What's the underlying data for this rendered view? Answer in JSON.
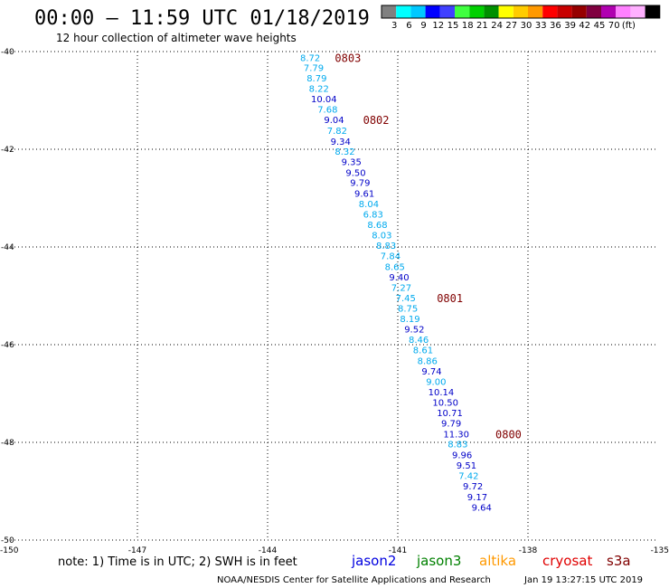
{
  "header": {
    "title": "00:00 – 11:59 UTC 01/18/2019",
    "subtitle": "12 hour collection of altimeter wave heights"
  },
  "legend_scale": {
    "colors": [
      "#808080",
      "#00ffff",
      "#00c8ff",
      "#0000ff",
      "#4040ff",
      "#40ff40",
      "#00d000",
      "#009000",
      "#ffff00",
      "#ffcc00",
      "#ff9900",
      "#ff0000",
      "#c80000",
      "#960000",
      "#800040",
      "#b000b0",
      "#ff80ff",
      "#ffb0ff",
      "#000000"
    ],
    "labels": [
      "3",
      "6",
      "9",
      "12",
      "15",
      "18",
      "21",
      "24",
      "27",
      "30",
      "33",
      "36",
      "39",
      "42",
      "45",
      "70",
      "(ft)"
    ]
  },
  "note": "note: 1) Time is in UTC; 2) SWH is in feet",
  "satellites": [
    {
      "name": "jason2",
      "color": "#0000e0"
    },
    {
      "name": "jason3",
      "color": "#008000"
    },
    {
      "name": "altika",
      "color": "#ff9900"
    },
    {
      "name": "cryosat",
      "color": "#e00000"
    },
    {
      "name": "s3a",
      "color": "#800000"
    }
  ],
  "footer_left": "NOAA/NESDIS Center for Satellite Applications and Research",
  "footer_right": "Jan 19 13:27:15 UTC 2019",
  "chart_data": {
    "type": "scatter",
    "xlim": [
      -150,
      -135
    ],
    "ylim": [
      -50,
      -40
    ],
    "x_ticks": [
      -150,
      -147,
      -144,
      -141,
      -138,
      -135
    ],
    "x_tick_labels": [
      "-150",
      "-147",
      "-144",
      "-141",
      "-138",
      "-135"
    ],
    "y_ticks": [
      -40,
      -42,
      -44,
      -46,
      -48,
      -50
    ],
    "y_tick_labels": [
      "-40",
      "-42",
      "-44",
      "-46",
      "-48",
      "-50"
    ],
    "grid": true,
    "points": [
      {
        "lon": -143.25,
        "lat": -40.12,
        "label": "8.72",
        "color": "#00aaee"
      },
      {
        "lon": -143.17,
        "lat": -40.32,
        "label": "7.79",
        "color": "#00aaee"
      },
      {
        "lon": -143.1,
        "lat": -40.54,
        "label": "8.79",
        "color": "#00aaee"
      },
      {
        "lon": -143.05,
        "lat": -40.75,
        "label": "8.22",
        "color": "#00aaee"
      },
      {
        "lon": -143.0,
        "lat": -40.96,
        "label": "10.04",
        "color": "#0000c8"
      },
      {
        "lon": -142.85,
        "lat": -41.18,
        "label": "7.68",
        "color": "#00aaee"
      },
      {
        "lon": -142.7,
        "lat": -41.39,
        "label": "9.04",
        "color": "#0000c8"
      },
      {
        "lon": -142.63,
        "lat": -41.61,
        "label": "7.82",
        "color": "#00aaee"
      },
      {
        "lon": -142.55,
        "lat": -41.83,
        "label": "9.34",
        "color": "#0000c8"
      },
      {
        "lon": -142.45,
        "lat": -42.04,
        "label": "8.32",
        "color": "#00aaee"
      },
      {
        "lon": -142.3,
        "lat": -42.25,
        "label": "9.35",
        "color": "#0000c8"
      },
      {
        "lon": -142.2,
        "lat": -42.47,
        "label": "9.50",
        "color": "#0000c8"
      },
      {
        "lon": -142.1,
        "lat": -42.68,
        "label": "9.79",
        "color": "#0000c8"
      },
      {
        "lon": -142.0,
        "lat": -42.9,
        "label": "9.61",
        "color": "#0000c8"
      },
      {
        "lon": -141.9,
        "lat": -43.11,
        "label": "8.04",
        "color": "#00aaee"
      },
      {
        "lon": -141.8,
        "lat": -43.32,
        "label": "6.83",
        "color": "#00aaee"
      },
      {
        "lon": -141.7,
        "lat": -43.54,
        "label": "8.68",
        "color": "#00aaee"
      },
      {
        "lon": -141.6,
        "lat": -43.75,
        "label": "8.03",
        "color": "#00aaee"
      },
      {
        "lon": -141.5,
        "lat": -43.96,
        "label": "8.83",
        "color": "#00aaee"
      },
      {
        "lon": -141.4,
        "lat": -44.18,
        "label": "7.84",
        "color": "#00aaee"
      },
      {
        "lon": -141.3,
        "lat": -44.4,
        "label": "8.65",
        "color": "#00aaee"
      },
      {
        "lon": -141.2,
        "lat": -44.61,
        "label": "9.40",
        "color": "#0000c8"
      },
      {
        "lon": -141.15,
        "lat": -44.82,
        "label": "7.27",
        "color": "#00aaee"
      },
      {
        "lon": -141.05,
        "lat": -45.04,
        "label": "7.45",
        "color": "#00aaee"
      },
      {
        "lon": -141.0,
        "lat": -45.25,
        "label": "8.75",
        "color": "#00aaee"
      },
      {
        "lon": -140.95,
        "lat": -45.46,
        "label": "8.19",
        "color": "#00aaee"
      },
      {
        "lon": -140.85,
        "lat": -45.68,
        "label": "9.52",
        "color": "#0000c8"
      },
      {
        "lon": -140.75,
        "lat": -45.89,
        "label": "8.46",
        "color": "#00aaee"
      },
      {
        "lon": -140.65,
        "lat": -46.1,
        "label": "8.61",
        "color": "#00aaee"
      },
      {
        "lon": -140.55,
        "lat": -46.32,
        "label": "8.86",
        "color": "#00aaee"
      },
      {
        "lon": -140.45,
        "lat": -46.54,
        "label": "9.74",
        "color": "#0000c8"
      },
      {
        "lon": -140.35,
        "lat": -46.75,
        "label": "9.00",
        "color": "#00aaee"
      },
      {
        "lon": -140.3,
        "lat": -46.96,
        "label": "10.14",
        "color": "#0000c8"
      },
      {
        "lon": -140.2,
        "lat": -47.18,
        "label": "10.50",
        "color": "#0000c8"
      },
      {
        "lon": -140.1,
        "lat": -47.39,
        "label": "10.71",
        "color": "#0000c8"
      },
      {
        "lon": -140.0,
        "lat": -47.6,
        "label": "9.79",
        "color": "#0000c8"
      },
      {
        "lon": -139.95,
        "lat": -47.82,
        "label": "11.30",
        "color": "#0000c8"
      },
      {
        "lon": -139.85,
        "lat": -48.03,
        "label": "8.83",
        "color": "#00aaee"
      },
      {
        "lon": -139.75,
        "lat": -48.25,
        "label": "9.96",
        "color": "#0000c8"
      },
      {
        "lon": -139.65,
        "lat": -48.46,
        "label": "9.51",
        "color": "#0000c8"
      },
      {
        "lon": -139.6,
        "lat": -48.68,
        "label": "7.42",
        "color": "#00aaee"
      },
      {
        "lon": -139.5,
        "lat": -48.89,
        "label": "9.72",
        "color": "#0000c8"
      },
      {
        "lon": -139.4,
        "lat": -49.11,
        "label": "9.17",
        "color": "#0000c8"
      },
      {
        "lon": -139.3,
        "lat": -49.32,
        "label": "9.64",
        "color": "#0000c8"
      }
    ],
    "time_labels": [
      {
        "lon": -142.45,
        "lat": -40.12,
        "label": "0803",
        "color": "#800000"
      },
      {
        "lon": -141.8,
        "lat": -41.39,
        "label": "0802",
        "color": "#800000"
      },
      {
        "lon": -140.1,
        "lat": -45.04,
        "label": "0801",
        "color": "#800000"
      },
      {
        "lon": -138.75,
        "lat": -47.82,
        "label": "0800",
        "color": "#800000"
      }
    ]
  }
}
